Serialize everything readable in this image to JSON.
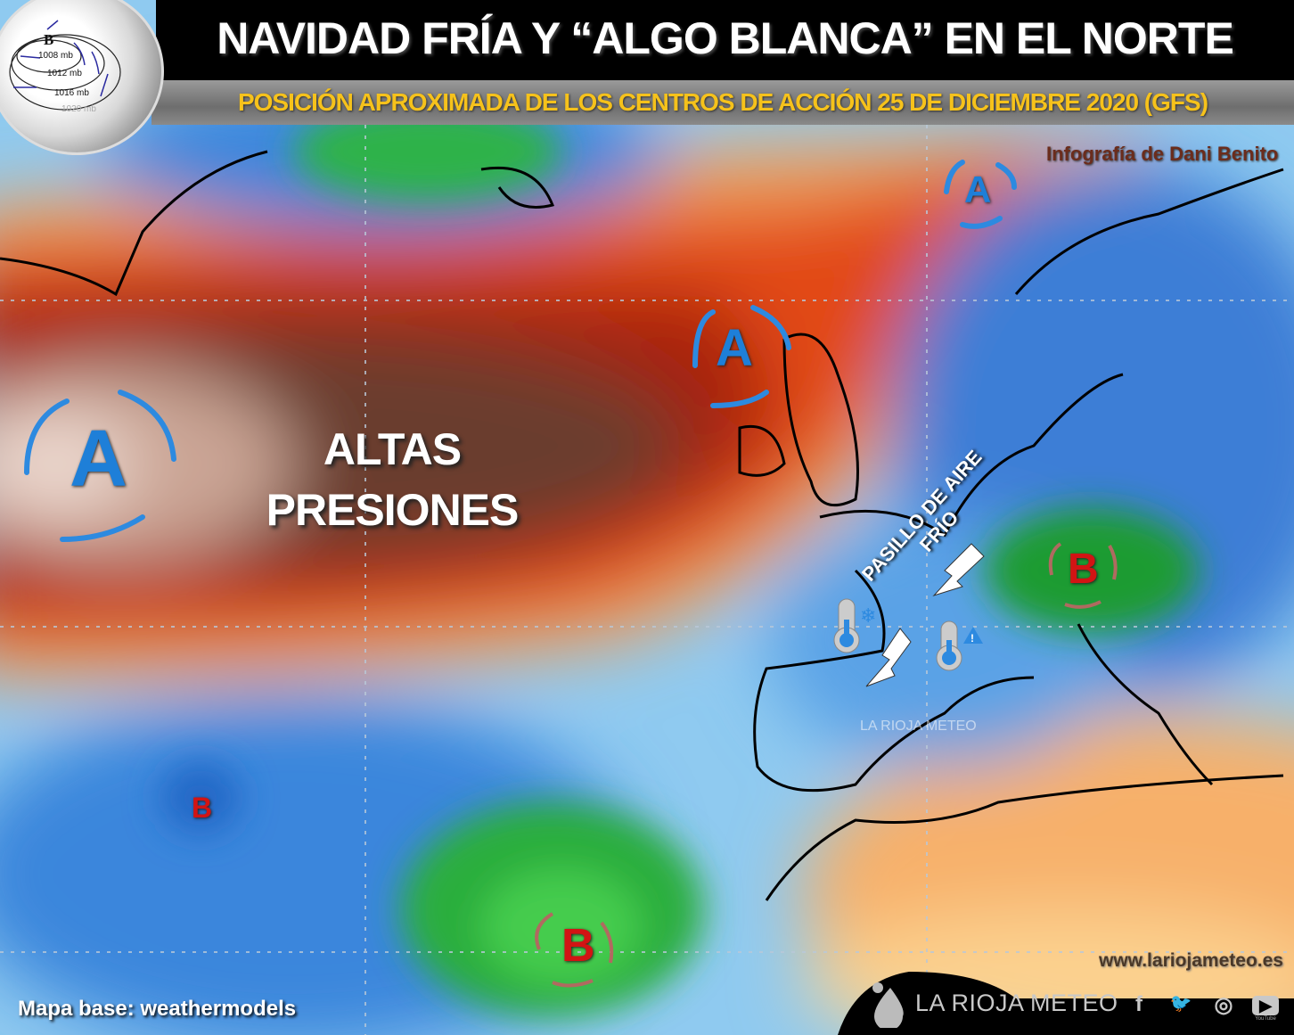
{
  "header": {
    "title": "NAVIDAD FRÍA Y “ALGO BLANCA” EN EL NORTE",
    "subtitle": "POSICIÓN APROXIMADA DE LOS CENTROS DE ACCIÓN 25 DE DICIEMBRE 2020 (GFS)"
  },
  "logo": {
    "center_label": "B",
    "isobars": [
      "1008 mb",
      "1012 mb",
      "1016 mb",
      "1020 mb"
    ]
  },
  "map": {
    "main_label_line1": "ALTAS",
    "main_label_line2": "PRESIONES",
    "corridor_line1": "PASILLO DE AIRE",
    "corridor_line2": "FRÍO",
    "high_symbol": "A",
    "low_symbol": "B",
    "watermark": "LA RIOJA METEO",
    "colors": {
      "high": "#1e7fd8",
      "low": "#d21414",
      "ridge": "#d93a12",
      "trough": "#2e9e2e",
      "title_accent": "#f6c21b"
    }
  },
  "credits": {
    "author": "Infografía de  Dani Benito",
    "website": "www.lariojameteo.es",
    "base_map": "Mapa base: weathermodels"
  },
  "footer": {
    "brand": "LA RIOJA METEO",
    "social": [
      {
        "icon": "facebook-icon",
        "glyph": "f"
      },
      {
        "icon": "twitter-icon",
        "glyph": "🐦"
      },
      {
        "icon": "instagram-icon",
        "glyph": "◎"
      },
      {
        "icon": "youtube-icon",
        "glyph": "▶",
        "caption": "YouTube"
      }
    ]
  }
}
